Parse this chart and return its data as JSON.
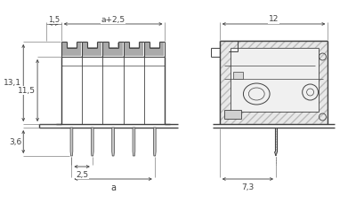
{
  "bg_color": "#ffffff",
  "line_color": "#404040",
  "dim_color": "#404040",
  "fill_color_dark": "#a0a0a0",
  "fill_color_light": "#d8d8d8",
  "fill_hatch": "#c0c0c0",
  "title": "",
  "dims_left": {
    "label_131": "13,1",
    "label_115": "11,5",
    "label_36": "3,6"
  },
  "dims_top_left": {
    "label_15": "1,5",
    "label_a25": "a+2,5"
  },
  "dims_bottom_left": {
    "label_25": "2,5",
    "label_a": "a"
  },
  "dims_right": {
    "label_12": "12",
    "label_73": "7,3"
  },
  "n_pins": 5,
  "pin_pitch": 2.5
}
